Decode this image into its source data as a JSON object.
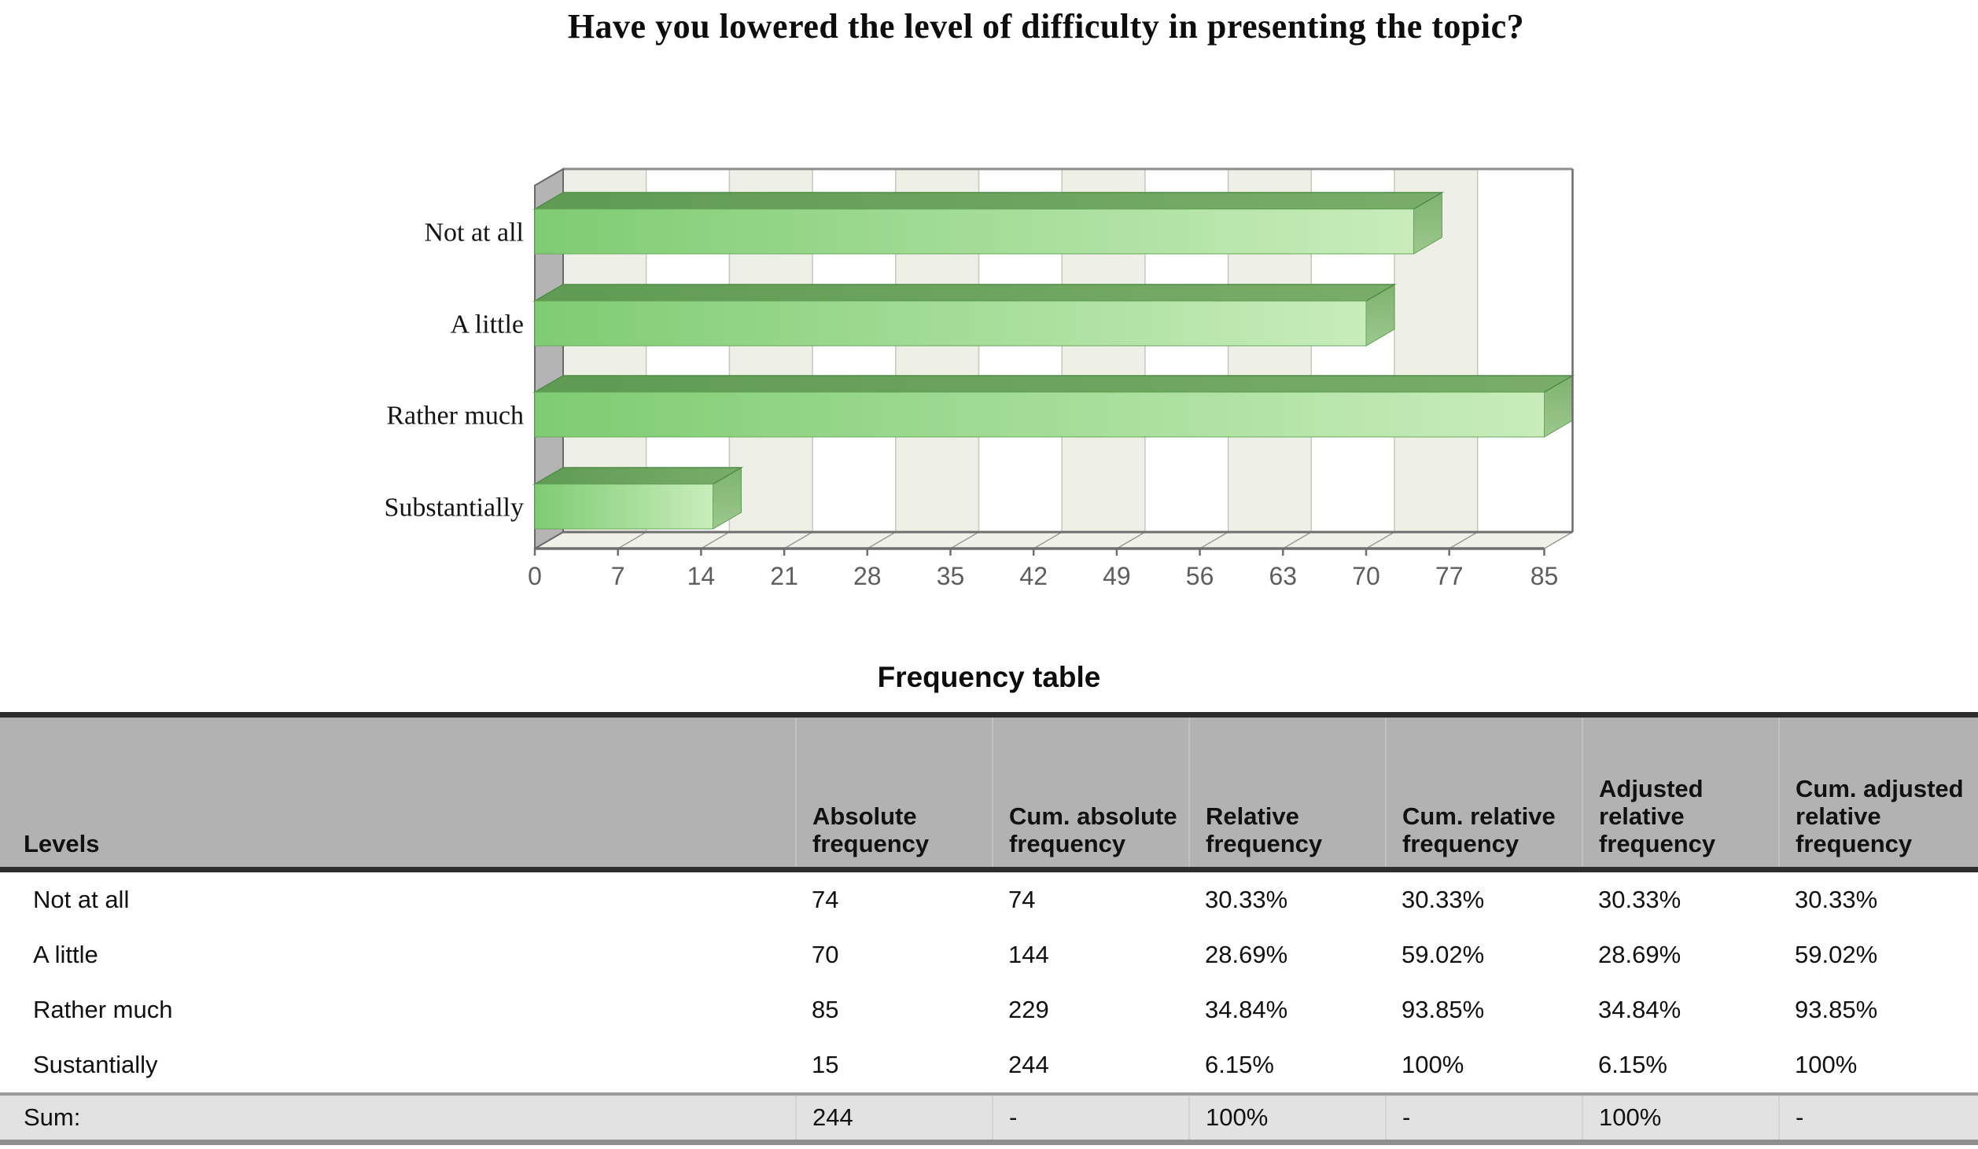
{
  "chart_data": {
    "type": "bar",
    "orientation": "horizontal",
    "style": "3d-extruded-bars",
    "title": "Have you lowered the level of difficulty in presenting the topic?",
    "categories": [
      "Not at all",
      "A little",
      "Rather much",
      "Substantially"
    ],
    "values": [
      74,
      70,
      85,
      15
    ],
    "x_ticks": [
      0,
      7,
      14,
      21,
      28,
      35,
      42,
      49,
      56,
      63,
      70,
      77,
      85
    ],
    "xlim": [
      0,
      85
    ],
    "xlabel": "",
    "ylabel": "",
    "legend": "none",
    "grid": "alternating-vertical-bands",
    "colors": {
      "bar_front_left": "#7fcc73",
      "bar_front_right": "#c8edbb",
      "bar_top_left": "#5f9b53",
      "bar_top_right": "#79ad69",
      "bar_side_top": "#7fb370",
      "bar_side_bottom": "#9cc88c",
      "bar_edge": "#4f8c46",
      "band_shaded": "#eef0e6",
      "band_white": "#ffffff",
      "band_line": "#c6c8bc",
      "wall": "#b4b4b4",
      "wall_edge": "#6a6a6a",
      "floor": "#f0f1e9",
      "floor_line": "#9a9a9a",
      "axis_line": "#6f6f6f",
      "top_border": "#8c8c8c",
      "tick_label": "#5e5e5e"
    }
  },
  "table": {
    "heading": "Frequency table",
    "columns": [
      "Levels",
      "Absolute frequency",
      "Cum. absolute frequency",
      "Relative frequency",
      "Cum. relative frequency",
      "Adjusted relative frequency",
      "Cum. adjusted relative frequency"
    ],
    "rows": [
      [
        "Not at all",
        "74",
        "74",
        "30.33%",
        "30.33%",
        "30.33%",
        "30.33%"
      ],
      [
        "A little",
        "70",
        "144",
        "28.69%",
        "59.02%",
        "28.69%",
        "59.02%"
      ],
      [
        "Rather much",
        "85",
        "229",
        "34.84%",
        "93.85%",
        "34.84%",
        "93.85%"
      ],
      [
        "Sustantially",
        "15",
        "244",
        "6.15%",
        "100%",
        "6.15%",
        "100%"
      ]
    ],
    "sum_row": [
      "Sum:",
      "244",
      "-",
      "100%",
      "-",
      "100%",
      "-"
    ]
  }
}
